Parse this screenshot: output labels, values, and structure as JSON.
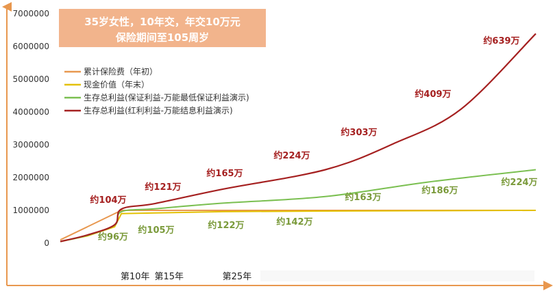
{
  "chart_data": {
    "type": "line",
    "title_lines": [
      "35岁女性，10年交，年交10万元",
      "保险期间至105周岁"
    ],
    "xlabel": "",
    "ylabel": "",
    "yticks": [
      "0",
      "1000000",
      "2000000",
      "3000000",
      "4000000",
      "5000000",
      "6000000",
      "7000000"
    ],
    "ylim": [
      0,
      7000000
    ],
    "xlim": [
      1,
      71
    ],
    "x_tick_labels": [
      {
        "x": 10,
        "label": "第10年"
      },
      {
        "x": 15,
        "label": "第15年"
      },
      {
        "x": 25,
        "label": "第25年"
      }
    ],
    "grid": false,
    "legend_position": "top-left",
    "series": [
      {
        "name": "累计保险费（年初）",
        "color": "#e8974e",
        "points": [
          [
            1,
            100000
          ],
          [
            10,
            1000000
          ],
          [
            71,
            1000000
          ]
        ]
      },
      {
        "name": "现金价值（年末）",
        "color": "#e3c000",
        "points": [
          [
            1,
            50000
          ],
          [
            5,
            220000
          ],
          [
            9,
            500000
          ],
          [
            10,
            900000
          ],
          [
            15,
            920000
          ],
          [
            25,
            960000
          ],
          [
            40,
            980000
          ],
          [
            55,
            990000
          ],
          [
            71,
            1000000
          ]
        ]
      },
      {
        "name": "生存总利益(保证利益-万能最低保证利益演示)",
        "color": "#7abf50",
        "points": [
          [
            1,
            50000
          ],
          [
            5,
            240000
          ],
          [
            9,
            550000
          ],
          [
            10,
            960000
          ],
          [
            15,
            1050000
          ],
          [
            25,
            1220000
          ],
          [
            40,
            1420000
          ],
          [
            55,
            1860000
          ],
          [
            71,
            2240000
          ]
        ]
      },
      {
        "name": "生存总利益(红利利益-万能结息利益演示)",
        "color": "#a52020",
        "points": [
          [
            1,
            50000
          ],
          [
            5,
            250000
          ],
          [
            9,
            560000
          ],
          [
            10,
            1040000
          ],
          [
            15,
            1210000
          ],
          [
            25,
            1650000
          ],
          [
            40,
            2240000
          ],
          [
            50,
            3030000
          ],
          [
            60,
            4090000
          ],
          [
            71,
            6390000
          ]
        ]
      }
    ],
    "annotations": [
      {
        "text": "约639万",
        "color": "#a52020",
        "x": 71,
        "y": 6390000
      },
      {
        "text": "约409万",
        "color": "#a52020",
        "x": 60,
        "y": 4090000
      },
      {
        "text": "约303万",
        "color": "#a52020",
        "x": 50,
        "y": 3030000
      },
      {
        "text": "约224万",
        "color": "#a52020",
        "x": 40,
        "y": 2240000
      },
      {
        "text": "约165万",
        "color": "#a52020",
        "x": 25,
        "y": 1650000
      },
      {
        "text": "约121万",
        "color": "#a52020",
        "x": 15,
        "y": 1210000
      },
      {
        "text": "约104万",
        "color": "#a52020",
        "x": 10,
        "y": 1040000
      },
      {
        "text": "约224万",
        "color": "#7a9a3a",
        "x": 71,
        "y": 2240000
      },
      {
        "text": "约186万",
        "color": "#7a9a3a",
        "x": 55,
        "y": 1860000
      },
      {
        "text": "约163万",
        "color": "#7a9a3a",
        "x": 45,
        "y": 1630000
      },
      {
        "text": "约142万",
        "color": "#7a9a3a",
        "x": 35,
        "y": 1420000
      },
      {
        "text": "约122万",
        "color": "#7a9a3a",
        "x": 25,
        "y": 1220000
      },
      {
        "text": "约105万",
        "color": "#7a9a3a",
        "x": 15,
        "y": 1050000
      },
      {
        "text": "约96万",
        "color": "#7a9a3a",
        "x": 10,
        "y": 960000
      }
    ]
  }
}
